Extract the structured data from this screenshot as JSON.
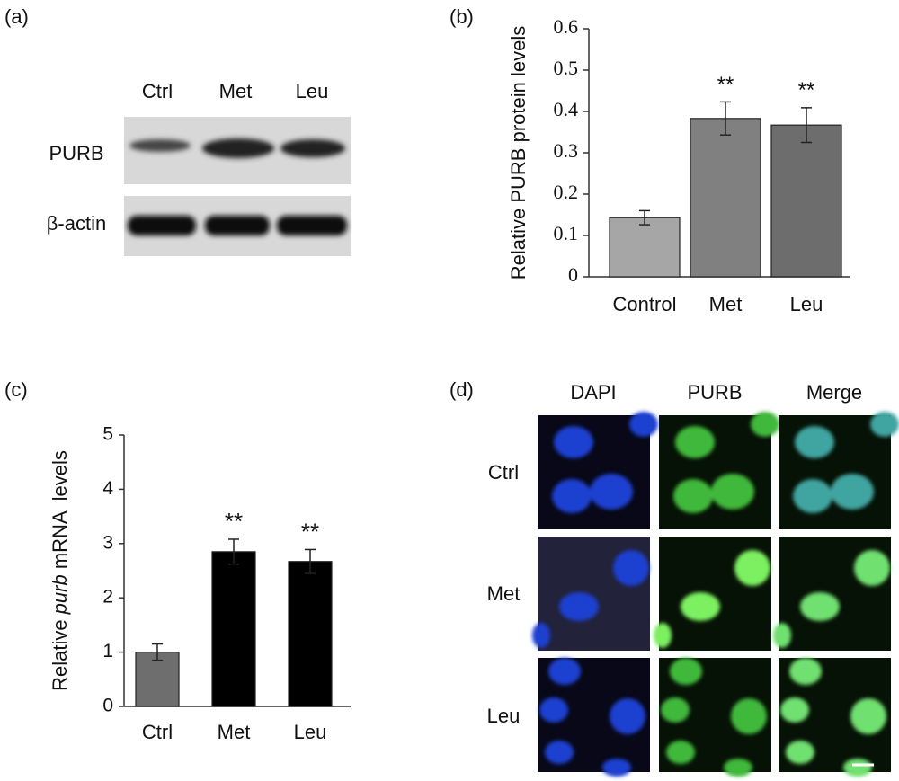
{
  "panels": {
    "a": "(a)",
    "b": "(b)",
    "c": "(c)",
    "d": "(d)"
  },
  "blot": {
    "lanes": [
      "Ctrl",
      "Met",
      "Leu"
    ],
    "rows": [
      "PURB",
      "β-actin"
    ]
  },
  "chart_data": [
    {
      "type": "bar",
      "y_label": "Relative PURB protein levels",
      "categories": [
        "Control",
        "Met",
        "Leu"
      ],
      "values": [
        0.143,
        0.383,
        0.367
      ],
      "errors": [
        0.017,
        0.04,
        0.042
      ],
      "colors": [
        "#a6a6a6",
        "#808080",
        "#6d6d6d"
      ],
      "annotations": [
        null,
        "**",
        "**"
      ],
      "ylim": [
        0,
        0.6
      ],
      "yticks": [
        0,
        0.1,
        0.2,
        0.3,
        0.4,
        0.5,
        0.6
      ]
    },
    {
      "type": "bar",
      "y_label_parts": [
        "Relative ",
        "purb",
        " mRNA  levels"
      ],
      "categories": [
        "Ctrl",
        "Met",
        "Leu"
      ],
      "values": [
        1.0,
        2.85,
        2.67
      ],
      "errors": [
        0.15,
        0.23,
        0.22
      ],
      "colors": [
        "#6e6e6e",
        "#000000",
        "#000000"
      ],
      "annotations": [
        null,
        "**",
        "**"
      ],
      "ylim": [
        0,
        5
      ],
      "yticks": [
        0,
        1,
        2,
        3,
        4,
        5
      ]
    }
  ],
  "microscopy": {
    "columns": [
      "DAPI",
      "PURB",
      "Merge"
    ],
    "rows": [
      "Ctrl",
      "Met",
      "Leu"
    ]
  }
}
